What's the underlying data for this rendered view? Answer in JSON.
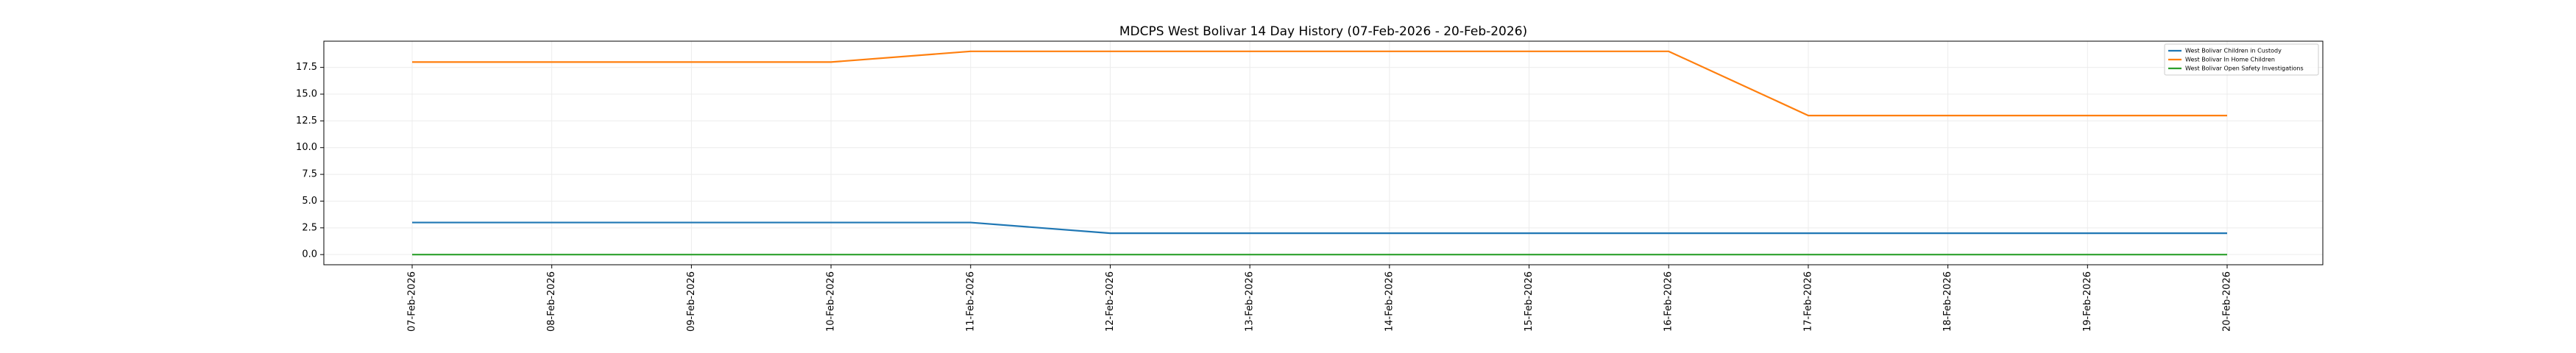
{
  "chart_data": {
    "type": "line",
    "title": "MDCPS West Bolivar 14 Day History (07-Feb-2026 - 20-Feb-2026)",
    "xlabel": "",
    "ylabel": "",
    "categories": [
      "07-Feb-2026",
      "08-Feb-2026",
      "09-Feb-2026",
      "10-Feb-2026",
      "11-Feb-2026",
      "12-Feb-2026",
      "13-Feb-2026",
      "14-Feb-2026",
      "15-Feb-2026",
      "16-Feb-2026",
      "17-Feb-2026",
      "18-Feb-2026",
      "19-Feb-2026",
      "20-Feb-2026"
    ],
    "yticks": [
      "0.0",
      "2.5",
      "5.0",
      "7.5",
      "10.0",
      "12.5",
      "15.0",
      "17.5"
    ],
    "ylim": [
      -0.95,
      19.95
    ],
    "grid": true,
    "legend_position": "top-right",
    "series": [
      {
        "name": "West Bolivar Children in Custody",
        "color": "#1f77b4",
        "values": [
          3,
          3,
          3,
          3,
          3,
          2,
          2,
          2,
          2,
          2,
          2,
          2,
          2,
          2
        ]
      },
      {
        "name": "West Bolivar In Home Children",
        "color": "#ff7f0e",
        "values": [
          18,
          18,
          18,
          18,
          19,
          19,
          19,
          19,
          19,
          19,
          13,
          13,
          13,
          13
        ]
      },
      {
        "name": "West Bolivar Open Safety Investigations",
        "color": "#2ca02c",
        "values": [
          0,
          0,
          0,
          0,
          0,
          0,
          0,
          0,
          0,
          0,
          0,
          0,
          0,
          0
        ]
      }
    ]
  }
}
